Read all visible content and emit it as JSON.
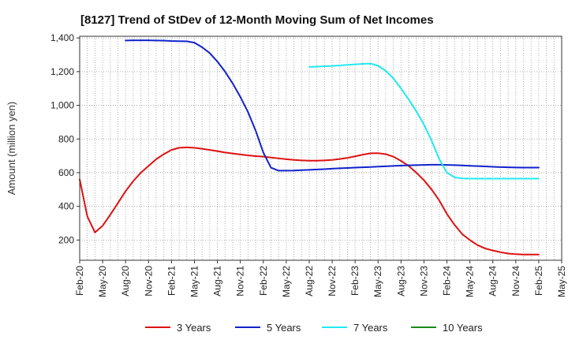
{
  "chart_data": {
    "type": "line",
    "title": "[8127]  Trend of StDev of 12-Month Moving Sum of Net Incomes",
    "xlabel": "",
    "ylabel": "Amount (million yen)",
    "x_tick_labels": [
      "Feb-20",
      "May-20",
      "Aug-20",
      "Nov-20",
      "Feb-21",
      "May-21",
      "Aug-21",
      "Nov-21",
      "Feb-22",
      "May-22",
      "Aug-22",
      "Nov-22",
      "Feb-23",
      "May-23",
      "Aug-23",
      "Nov-23",
      "Feb-24",
      "May-24",
      "Aug-24",
      "Nov-24",
      "Feb-25",
      "May-25"
    ],
    "y_ticks": [
      200,
      400,
      600,
      800,
      1000,
      1200,
      1400
    ],
    "y_tick_labels": [
      "200",
      "400",
      "600",
      "800",
      "1,000",
      "1,200",
      "1,400"
    ],
    "ylim": [
      80,
      1410
    ],
    "grid": true,
    "legend_position": "bottom",
    "series": [
      {
        "name": "3 Years",
        "color": "#dd1111",
        "x": [
          "2020-02",
          "2020-03",
          "2020-04",
          "2020-05",
          "2020-06",
          "2020-07",
          "2020-08",
          "2020-09",
          "2020-10",
          "2020-11",
          "2020-12",
          "2021-01",
          "2021-02",
          "2021-03",
          "2021-04",
          "2021-05",
          "2021-06",
          "2021-07",
          "2021-08",
          "2021-09",
          "2021-10",
          "2021-11",
          "2021-12",
          "2022-01",
          "2022-02",
          "2022-03",
          "2022-04",
          "2022-05",
          "2022-06",
          "2022-07",
          "2022-08",
          "2022-09",
          "2022-10",
          "2022-11",
          "2022-12",
          "2023-01",
          "2023-02",
          "2023-03",
          "2023-04",
          "2023-05",
          "2023-06",
          "2023-07",
          "2023-08",
          "2023-09",
          "2023-10",
          "2023-11",
          "2023-12",
          "2024-01",
          "2024-02",
          "2024-03",
          "2024-04",
          "2024-05",
          "2024-06",
          "2024-07",
          "2024-08",
          "2024-09",
          "2024-10",
          "2024-11",
          "2024-12",
          "2025-01",
          "2025-02"
        ],
        "y": [
          560,
          340,
          245,
          285,
          350,
          420,
          490,
          550,
          600,
          640,
          680,
          710,
          735,
          748,
          750,
          748,
          742,
          735,
          728,
          720,
          714,
          708,
          703,
          698,
          695,
          690,
          685,
          680,
          676,
          673,
          671,
          671,
          673,
          676,
          681,
          688,
          697,
          707,
          715,
          716,
          710,
          695,
          670,
          640,
          600,
          555,
          500,
          435,
          355,
          290,
          235,
          200,
          170,
          150,
          138,
          128,
          120,
          116,
          114,
          114,
          114
        ]
      },
      {
        "name": "5 Years",
        "color": "#1122cc",
        "x": [
          "2020-08",
          "2020-09",
          "2020-10",
          "2020-11",
          "2020-12",
          "2021-01",
          "2021-02",
          "2021-03",
          "2021-04",
          "2021-05",
          "2021-06",
          "2021-07",
          "2021-08",
          "2021-09",
          "2021-10",
          "2021-11",
          "2021-12",
          "2022-01",
          "2022-02",
          "2022-03",
          "2022-04",
          "2022-05",
          "2022-06",
          "2022-07",
          "2022-08",
          "2022-09",
          "2022-10",
          "2022-11",
          "2022-12",
          "2023-01",
          "2023-02",
          "2023-03",
          "2023-04",
          "2023-05",
          "2023-06",
          "2023-07",
          "2023-08",
          "2023-09",
          "2023-10",
          "2023-11",
          "2023-12",
          "2024-01",
          "2024-02",
          "2024-03",
          "2024-04",
          "2024-05",
          "2024-06",
          "2024-07",
          "2024-08",
          "2024-09",
          "2024-10",
          "2024-11",
          "2024-12",
          "2025-01",
          "2025-02"
        ],
        "y": [
          1385,
          1386,
          1386,
          1386,
          1385,
          1384,
          1382,
          1381,
          1380,
          1372,
          1345,
          1310,
          1260,
          1200,
          1130,
          1050,
          960,
          850,
          720,
          630,
          612,
          612,
          613,
          615,
          617,
          619,
          621,
          624,
          626,
          628,
          630,
          632,
          634,
          636,
          638,
          640,
          642,
          644,
          645,
          646,
          647,
          647,
          646,
          645,
          643,
          641,
          639,
          637,
          635,
          633,
          632,
          631,
          630,
          630,
          630
        ]
      },
      {
        "name": "7 Years",
        "color": "#22e8f0",
        "x": [
          "2022-08",
          "2022-09",
          "2022-10",
          "2022-11",
          "2022-12",
          "2023-01",
          "2023-02",
          "2023-03",
          "2023-04",
          "2023-05",
          "2023-06",
          "2023-07",
          "2023-08",
          "2023-09",
          "2023-10",
          "2023-11",
          "2023-12",
          "2024-01",
          "2024-02",
          "2024-03",
          "2024-04",
          "2024-05",
          "2024-06",
          "2024-07",
          "2024-08",
          "2024-09",
          "2024-10",
          "2024-11",
          "2024-12",
          "2025-01",
          "2025-02"
        ],
        "y": [
          1228,
          1230,
          1232,
          1234,
          1237,
          1240,
          1243,
          1246,
          1248,
          1235,
          1205,
          1160,
          1100,
          1035,
          965,
          885,
          790,
          680,
          600,
          572,
          566,
          565,
          565,
          565,
          565,
          565,
          565,
          565,
          565,
          565,
          565
        ]
      },
      {
        "name": "10 Years",
        "color": "#1a8a1a",
        "x": [],
        "y": []
      }
    ]
  }
}
